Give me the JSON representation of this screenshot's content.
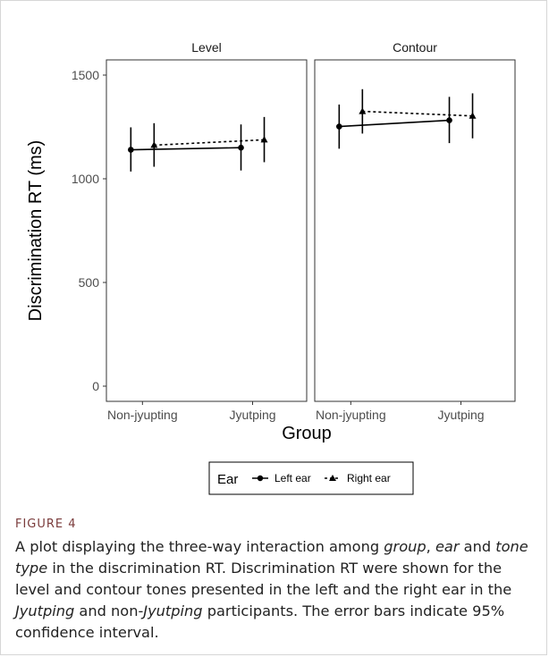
{
  "figure": {
    "label": "FIGURE 4",
    "caption_parts": [
      {
        "text": "A plot displaying the three-way interaction among ",
        "italic": false
      },
      {
        "text": "group",
        "italic": true
      },
      {
        "text": ", ",
        "italic": false
      },
      {
        "text": "ear",
        "italic": true
      },
      {
        "text": " and ",
        "italic": false
      },
      {
        "text": "tone type",
        "italic": true
      },
      {
        "text": " in the discrimination RT. Discrimination RT were shown for the level and contour tones presented in the left and the right ear in the ",
        "italic": false
      },
      {
        "text": "Jyutping",
        "italic": true
      },
      {
        "text": " and non-",
        "italic": false
      },
      {
        "text": "Jyutping",
        "italic": true
      },
      {
        "text": " participants. The error bars indicate 95% confidence interval.",
        "italic": false
      }
    ]
  },
  "chart_data": {
    "type": "line",
    "ylabel": "Discrimination RT (ms)",
    "xlabel": "Group",
    "ylim": [
      0,
      1600
    ],
    "yticks": [
      0,
      500,
      1000,
      1500
    ],
    "categories": [
      "Non-jyupting",
      "Jyutping"
    ],
    "grid": false,
    "legend": {
      "position": "bottom",
      "title": "Ear",
      "entries": [
        {
          "name": "Left ear",
          "line": "solid",
          "marker": "circle"
        },
        {
          "name": "Right ear",
          "line": "dashed",
          "marker": "triangle"
        }
      ]
    },
    "panels": [
      {
        "title": "Level",
        "series": [
          {
            "name": "Left ear",
            "values": [
              1140,
              1150
            ],
            "lower": [
              1035,
              1040
            ],
            "upper": [
              1248,
              1262
            ]
          },
          {
            "name": "Right ear",
            "values": [
              1162,
              1188
            ],
            "lower": [
              1058,
              1080
            ],
            "upper": [
              1268,
              1298
            ]
          }
        ]
      },
      {
        "title": "Contour",
        "series": [
          {
            "name": "Left ear",
            "values": [
              1252,
              1282
            ],
            "lower": [
              1145,
              1172
            ],
            "upper": [
              1358,
              1395
            ]
          },
          {
            "name": "Right ear",
            "values": [
              1325,
              1303
            ],
            "lower": [
              1218,
              1195
            ],
            "upper": [
              1432,
              1412
            ]
          }
        ]
      }
    ]
  }
}
